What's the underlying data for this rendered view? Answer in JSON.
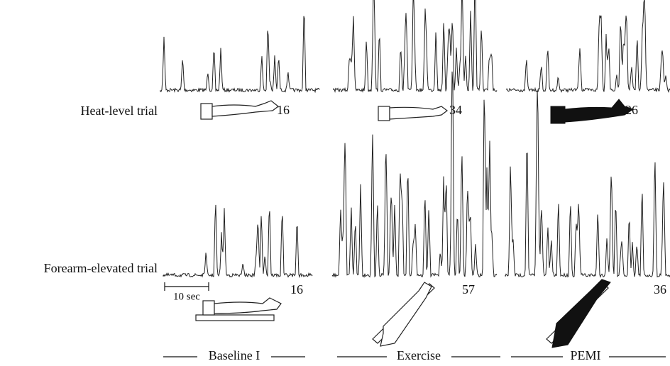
{
  "row_labels": [
    "Heat-level trial",
    "Forearm-elevated trial"
  ],
  "panels": [
    [
      16,
      34,
      26
    ],
    [
      16,
      57,
      36
    ]
  ],
  "scale_bar": "10 sec",
  "column_labels": [
    "Baseline I",
    "Exercise",
    "PEMI"
  ]
}
